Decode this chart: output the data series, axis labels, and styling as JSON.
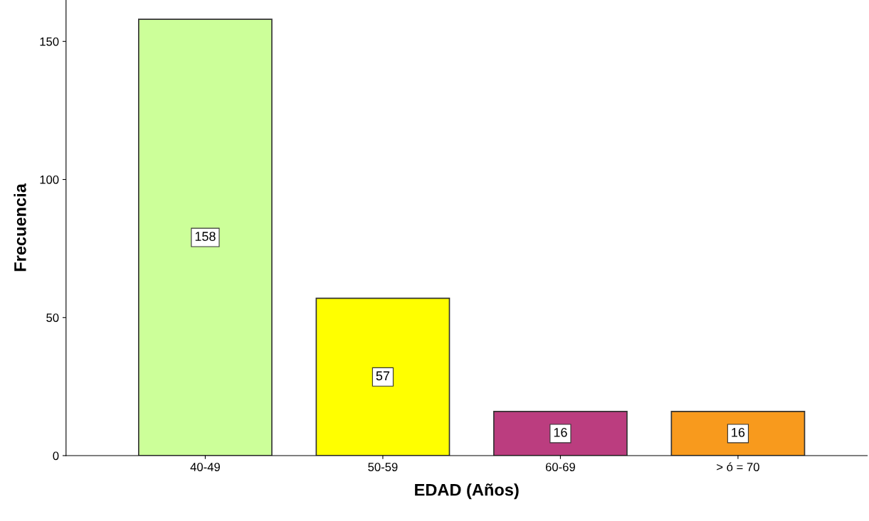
{
  "chart_data": {
    "type": "bar",
    "xlabel": "EDAD (Años)",
    "ylabel": "Frecuencia",
    "categories": [
      "40-49",
      "50-59",
      "60-69",
      "> ó = 70"
    ],
    "values": [
      158,
      57,
      16,
      16
    ],
    "colors": [
      "#ccff99",
      "#ffff00",
      "#bb3d7f",
      "#f89a1d"
    ],
    "ylim": [
      0,
      165
    ],
    "yticks": [
      0,
      50,
      100,
      150
    ],
    "grid": false,
    "data_labels": true
  }
}
